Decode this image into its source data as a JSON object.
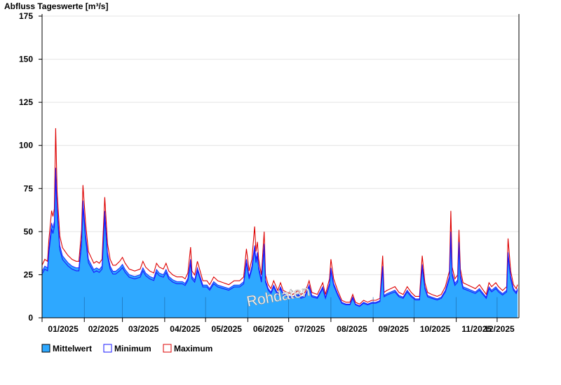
{
  "chart_data": {
    "type": "area",
    "title": "Abfluss Tageswerte [m³/s]",
    "ylim": [
      0,
      175
    ],
    "yticks": [
      0,
      25,
      50,
      75,
      100,
      125,
      150,
      175
    ],
    "ytick_labels": [
      "0",
      "25",
      "50",
      "75",
      "100",
      "125",
      "150",
      "175"
    ],
    "month_labels": [
      "01/2025",
      "02/2025",
      "03/2025",
      "04/2025",
      "05/2025",
      "06/2025",
      "07/2025",
      "08/2025",
      "09/2025",
      "10/2025",
      "11/2025",
      "12/2025"
    ],
    "x_start": "2025-01-01",
    "grid": "horizontal",
    "watermark": "Rohdaten",
    "legend_position": "bottom-left",
    "series": [
      {
        "name": "Mittelwert",
        "color": "#2ea8ff",
        "edge_color": "#1a1aff",
        "points": [
          [
            "2025-01-01",
            27
          ],
          [
            "2025-01-03",
            30
          ],
          [
            "2025-01-05",
            29
          ],
          [
            "2025-01-06",
            40
          ],
          [
            "2025-01-08",
            55
          ],
          [
            "2025-01-09",
            52
          ],
          [
            "2025-01-10",
            56
          ],
          [
            "2025-01-11",
            87
          ],
          [
            "2025-01-12",
            65
          ],
          [
            "2025-01-14",
            42
          ],
          [
            "2025-01-16",
            36
          ],
          [
            "2025-01-18",
            34
          ],
          [
            "2025-01-20",
            32
          ],
          [
            "2025-01-23",
            30
          ],
          [
            "2025-01-26",
            29
          ],
          [
            "2025-01-28",
            29
          ],
          [
            "2025-01-30",
            45
          ],
          [
            "2025-01-31",
            68
          ],
          [
            "2025-02-02",
            48
          ],
          [
            "2025-02-04",
            34
          ],
          [
            "2025-02-06",
            31
          ],
          [
            "2025-02-08",
            28
          ],
          [
            "2025-02-10",
            29
          ],
          [
            "2025-02-12",
            28
          ],
          [
            "2025-02-14",
            30
          ],
          [
            "2025-02-16",
            62
          ],
          [
            "2025-02-18",
            38
          ],
          [
            "2025-02-20",
            30
          ],
          [
            "2025-02-22",
            27
          ],
          [
            "2025-02-24",
            27
          ],
          [
            "2025-02-27",
            29
          ],
          [
            "2025-03-01",
            31
          ],
          [
            "2025-03-03",
            28
          ],
          [
            "2025-03-06",
            25
          ],
          [
            "2025-03-10",
            24
          ],
          [
            "2025-03-14",
            25
          ],
          [
            "2025-03-16",
            29
          ],
          [
            "2025-03-18",
            26
          ],
          [
            "2025-03-21",
            24
          ],
          [
            "2025-03-24",
            23
          ],
          [
            "2025-03-26",
            28
          ],
          [
            "2025-03-28",
            26
          ],
          [
            "2025-03-31",
            25
          ],
          [
            "2025-04-02",
            28
          ],
          [
            "2025-04-04",
            24
          ],
          [
            "2025-04-07",
            22
          ],
          [
            "2025-04-10",
            21
          ],
          [
            "2025-04-14",
            21
          ],
          [
            "2025-04-16",
            20
          ],
          [
            "2025-04-18",
            23
          ],
          [
            "2025-04-20",
            34
          ],
          [
            "2025-04-21",
            24
          ],
          [
            "2025-04-23",
            22
          ],
          [
            "2025-04-25",
            29
          ],
          [
            "2025-04-27",
            24
          ],
          [
            "2025-04-29",
            19
          ],
          [
            "2025-05-02",
            19
          ],
          [
            "2025-05-04",
            17
          ],
          [
            "2025-05-07",
            21
          ],
          [
            "2025-05-10",
            19
          ],
          [
            "2025-05-14",
            18
          ],
          [
            "2025-05-18",
            17
          ],
          [
            "2025-05-22",
            19
          ],
          [
            "2025-05-26",
            19
          ],
          [
            "2025-05-29",
            21
          ],
          [
            "2025-05-31",
            34
          ],
          [
            "2025-06-02",
            24
          ],
          [
            "2025-06-04",
            30
          ],
          [
            "2025-06-06",
            42
          ],
          [
            "2025-06-07",
            34
          ],
          [
            "2025-06-08",
            38
          ],
          [
            "2025-06-09",
            30
          ],
          [
            "2025-06-11",
            22
          ],
          [
            "2025-06-13",
            43
          ],
          [
            "2025-06-14",
            22
          ],
          [
            "2025-06-16",
            17
          ],
          [
            "2025-06-18",
            15
          ],
          [
            "2025-06-20",
            19
          ],
          [
            "2025-06-23",
            14
          ],
          [
            "2025-06-25",
            18
          ],
          [
            "2025-06-27",
            14
          ],
          [
            "2025-06-30",
            13
          ],
          [
            "2025-07-04",
            12
          ],
          [
            "2025-07-08",
            14
          ],
          [
            "2025-07-10",
            12
          ],
          [
            "2025-07-13",
            13
          ],
          [
            "2025-07-16",
            19
          ],
          [
            "2025-07-18",
            13
          ],
          [
            "2025-07-22",
            12
          ],
          [
            "2025-07-26",
            18
          ],
          [
            "2025-07-28",
            12
          ],
          [
            "2025-07-31",
            20
          ],
          [
            "2025-08-01",
            29
          ],
          [
            "2025-08-03",
            20
          ],
          [
            "2025-08-06",
            14
          ],
          [
            "2025-08-09",
            9
          ],
          [
            "2025-08-12",
            8
          ],
          [
            "2025-08-15",
            8
          ],
          [
            "2025-08-17",
            12
          ],
          [
            "2025-08-19",
            8
          ],
          [
            "2025-08-22",
            7
          ],
          [
            "2025-08-25",
            9
          ],
          [
            "2025-08-28",
            8
          ],
          [
            "2025-08-31",
            9
          ],
          [
            "2025-09-03",
            9
          ],
          [
            "2025-09-06",
            10
          ],
          [
            "2025-09-08",
            30
          ],
          [
            "2025-09-09",
            13
          ],
          [
            "2025-09-11",
            14
          ],
          [
            "2025-09-14",
            15
          ],
          [
            "2025-09-17",
            16
          ],
          [
            "2025-09-20",
            13
          ],
          [
            "2025-09-23",
            12
          ],
          [
            "2025-09-26",
            16
          ],
          [
            "2025-09-29",
            13
          ],
          [
            "2025-10-02",
            11
          ],
          [
            "2025-10-05",
            11
          ],
          [
            "2025-10-07",
            31
          ],
          [
            "2025-10-09",
            18
          ],
          [
            "2025-10-11",
            13
          ],
          [
            "2025-10-14",
            12
          ],
          [
            "2025-10-18",
            11
          ],
          [
            "2025-10-21",
            12
          ],
          [
            "2025-10-24",
            16
          ],
          [
            "2025-10-27",
            24
          ],
          [
            "2025-10-28",
            50
          ],
          [
            "2025-10-29",
            26
          ],
          [
            "2025-10-31",
            20
          ],
          [
            "2025-11-02",
            22
          ],
          [
            "2025-11-03",
            44
          ],
          [
            "2025-11-04",
            25
          ],
          [
            "2025-11-06",
            18
          ],
          [
            "2025-11-09",
            17
          ],
          [
            "2025-11-12",
            16
          ],
          [
            "2025-11-15",
            15
          ],
          [
            "2025-11-18",
            17
          ],
          [
            "2025-11-20",
            15
          ],
          [
            "2025-11-23",
            12
          ],
          [
            "2025-11-25",
            18
          ],
          [
            "2025-11-27",
            16
          ],
          [
            "2025-11-30",
            18
          ],
          [
            "2025-12-02",
            16
          ],
          [
            "2025-12-05",
            14
          ],
          [
            "2025-12-08",
            16
          ],
          [
            "2025-12-09",
            38
          ],
          [
            "2025-12-11",
            24
          ],
          [
            "2025-12-13",
            17
          ],
          [
            "2025-12-15",
            15
          ],
          [
            "2025-12-16",
            17
          ]
        ]
      },
      {
        "name": "Minimum",
        "color": "#1a1aff",
        "offset_fraction": 0.06
      },
      {
        "name": "Maximum",
        "color": "#dd0000",
        "offset_fraction": 0.13,
        "peaks": [
          [
            "2025-01-11",
            110
          ],
          [
            "2025-01-31",
            77
          ],
          [
            "2025-02-16",
            70
          ],
          [
            "2025-04-20",
            41
          ],
          [
            "2025-05-31",
            40
          ],
          [
            "2025-06-06",
            53
          ],
          [
            "2025-06-08",
            44
          ],
          [
            "2025-06-13",
            50
          ],
          [
            "2025-08-01",
            34
          ],
          [
            "2025-09-08",
            36
          ],
          [
            "2025-10-07",
            36
          ],
          [
            "2025-10-28",
            62
          ],
          [
            "2025-11-03",
            51
          ],
          [
            "2025-12-09",
            46
          ]
        ]
      }
    ]
  }
}
